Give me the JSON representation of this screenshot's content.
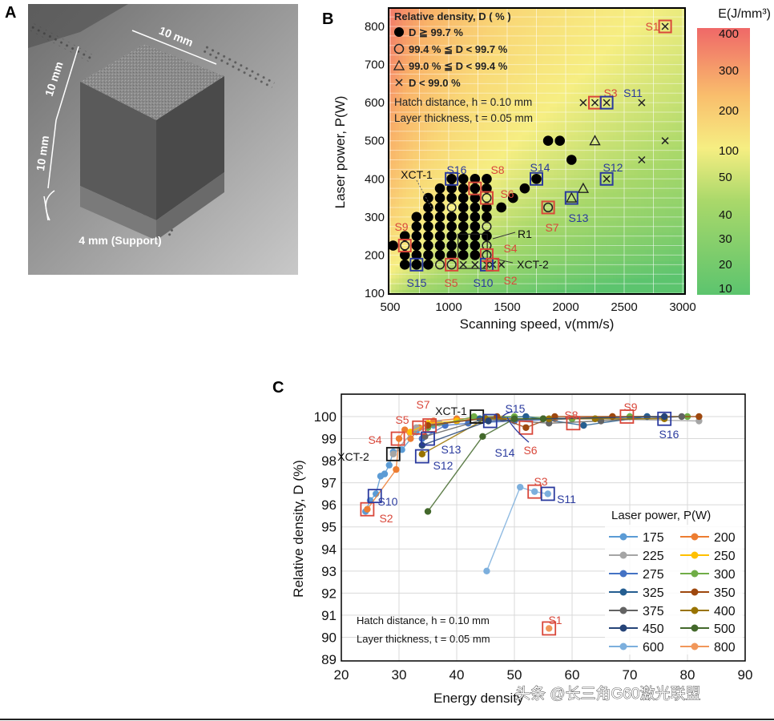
{
  "panels": {
    "a": {
      "letter": "A",
      "labels": {
        "top_width": "10 mm",
        "cube_height": "10 mm",
        "lower_height": "10 mm",
        "support": "4 mm (Support)"
      }
    },
    "b": {
      "letter": "B",
      "legend": {
        "title": "Relative density, D ( % )",
        "items": [
          "D ≧ 99.7 %",
          "99.4 % ≦ D < 99.7 %",
          "99.0 % ≦ D < 99.4 %",
          "D < 99.0 %"
        ],
        "hatch": "Hatch distance, h = 0.10 mm",
        "layer": "Layer thickness, t = 0.05 mm"
      },
      "annotations": [
        "XCT-1",
        "R1",
        "XCT-2"
      ],
      "colorbar": {
        "title": "E(J/mm³)",
        "ticks": [
          "400",
          "300",
          "200",
          "100",
          "50",
          "40",
          "30",
          "20",
          "10"
        ]
      }
    },
    "c": {
      "letter": "C",
      "hatch": "Hatch distance, h = 0.10 mm",
      "layer": "Layer thickness, t = 0.05 mm",
      "legend_title": "Laser power,  P(W)"
    }
  },
  "watermark": "头条 @长三角G60激光联盟",
  "colors": {
    "sample_red": "#d9483b",
    "sample_blue": "#2a3a9e",
    "energy_low": "#5cc46e",
    "energy_mid": "#f6ee82",
    "energy_high": "#ef6868"
  },
  "chart_data": [
    {
      "type": "scatter",
      "panel": "B",
      "xlabel": "Scanning speed,  v(mm/s)",
      "ylabel": "Laser power,  P(W)",
      "xlim": [
        500,
        3000
      ],
      "ylim": [
        100,
        850
      ],
      "xticks": [
        "500",
        "1000",
        "1500",
        "2000",
        "2500",
        "3000"
      ],
      "yticks": [
        "100",
        "200",
        "300",
        "400",
        "500",
        "600",
        "700",
        "800"
      ],
      "background": "energy density E = P/(v·h·t), J/mm³, log color scale 10–400",
      "marker_legend": {
        "filled_circle": "D ≧ 99.7 %",
        "open_circle": "99.4 % ≦ D < 99.7 %",
        "triangle": "99.0 % ≦ D < 99.4 %",
        "cross": "D < 99.0 %"
      },
      "points": [
        [
          525,
          225,
          "filled"
        ],
        [
          625,
          175,
          "filled"
        ],
        [
          625,
          200,
          "filled"
        ],
        [
          625,
          225,
          "open"
        ],
        [
          625,
          250,
          "filled"
        ],
        [
          725,
          175,
          "filled"
        ],
        [
          725,
          200,
          "filled"
        ],
        [
          725,
          225,
          "filled"
        ],
        [
          725,
          250,
          "filled"
        ],
        [
          725,
          275,
          "filled"
        ],
        [
          725,
          300,
          "filled"
        ],
        [
          825,
          175,
          "filled"
        ],
        [
          825,
          200,
          "filled"
        ],
        [
          825,
          225,
          "filled"
        ],
        [
          825,
          250,
          "filled"
        ],
        [
          825,
          275,
          "filled"
        ],
        [
          825,
          300,
          "filled"
        ],
        [
          825,
          325,
          "filled"
        ],
        [
          825,
          350,
          "filled"
        ],
        [
          925,
          175,
          "open"
        ],
        [
          925,
          200,
          "filled"
        ],
        [
          925,
          225,
          "filled"
        ],
        [
          925,
          250,
          "filled"
        ],
        [
          925,
          275,
          "filled"
        ],
        [
          925,
          300,
          "filled"
        ],
        [
          925,
          325,
          "filled"
        ],
        [
          925,
          350,
          "filled"
        ],
        [
          925,
          375,
          "filled"
        ],
        [
          1025,
          175,
          "open"
        ],
        [
          1025,
          200,
          "filled"
        ],
        [
          1025,
          225,
          "filled"
        ],
        [
          1025,
          250,
          "filled"
        ],
        [
          1025,
          275,
          "filled"
        ],
        [
          1025,
          300,
          "filled"
        ],
        [
          1025,
          325,
          "open"
        ],
        [
          1025,
          350,
          "filled"
        ],
        [
          1025,
          375,
          "filled"
        ],
        [
          1025,
          400,
          "filled"
        ],
        [
          1125,
          175,
          "cross"
        ],
        [
          1125,
          200,
          "filled"
        ],
        [
          1125,
          225,
          "filled"
        ],
        [
          1125,
          250,
          "filled"
        ],
        [
          1125,
          275,
          "filled"
        ],
        [
          1125,
          300,
          "filled"
        ],
        [
          1125,
          325,
          "filled"
        ],
        [
          1125,
          350,
          "filled"
        ],
        [
          1125,
          375,
          "filled"
        ],
        [
          1125,
          400,
          "filled"
        ],
        [
          1225,
          175,
          "cross"
        ],
        [
          1225,
          200,
          "filled"
        ],
        [
          1225,
          225,
          "filled"
        ],
        [
          1225,
          250,
          "filled"
        ],
        [
          1225,
          275,
          "filled"
        ],
        [
          1225,
          300,
          "filled"
        ],
        [
          1225,
          325,
          "filled"
        ],
        [
          1225,
          350,
          "filled"
        ],
        [
          1225,
          375,
          "filled"
        ],
        [
          1225,
          400,
          "filled"
        ],
        [
          1325,
          175,
          "cross"
        ],
        [
          1325,
          200,
          "open"
        ],
        [
          1325,
          225,
          "open"
        ],
        [
          1325,
          250,
          "filled"
        ],
        [
          1325,
          275,
          "open"
        ],
        [
          1325,
          300,
          "filled"
        ],
        [
          1325,
          325,
          "filled"
        ],
        [
          1325,
          350,
          "open"
        ],
        [
          1325,
          375,
          "filled"
        ],
        [
          1325,
          400,
          "filled"
        ],
        [
          1375,
          175,
          "cross"
        ],
        [
          1450,
          175,
          "cross"
        ],
        [
          1450,
          325,
          "filled"
        ],
        [
          1550,
          350,
          "filled"
        ],
        [
          1650,
          375,
          "filled"
        ],
        [
          1750,
          400,
          "filled"
        ],
        [
          1850,
          325,
          "open"
        ],
        [
          1850,
          500,
          "filled"
        ],
        [
          1950,
          500,
          "filled"
        ],
        [
          2050,
          450,
          "filled"
        ],
        [
          2050,
          350,
          "triangle"
        ],
        [
          2150,
          375,
          "triangle"
        ],
        [
          2250,
          500,
          "triangle"
        ],
        [
          2150,
          600,
          "cross"
        ],
        [
          2250,
          600,
          "cross"
        ],
        [
          2350,
          600,
          "cross"
        ],
        [
          2650,
          600,
          "cross"
        ],
        [
          2850,
          500,
          "cross"
        ],
        [
          2650,
          450,
          "cross"
        ],
        [
          2350,
          400,
          "cross"
        ],
        [
          2850,
          800,
          "cross"
        ]
      ],
      "samples": [
        {
          "label": "S1",
          "v": 2850,
          "P": 800,
          "color": "red"
        },
        {
          "label": "S3",
          "v": 2250,
          "P": 600,
          "color": "red"
        },
        {
          "label": "S11",
          "v": 2350,
          "P": 600,
          "color": "blue"
        },
        {
          "label": "S12",
          "v": 2350,
          "P": 400,
          "color": "blue"
        },
        {
          "label": "S14",
          "v": 1750,
          "P": 400,
          "color": "blue"
        },
        {
          "label": "S13",
          "v": 2050,
          "P": 350,
          "color": "blue"
        },
        {
          "label": "S7",
          "v": 1850,
          "P": 325,
          "color": "red"
        },
        {
          "label": "S16",
          "v": 1025,
          "P": 400,
          "color": "blue"
        },
        {
          "label": "S8",
          "v": 1225,
          "P": 375,
          "color": "red"
        },
        {
          "label": "S6",
          "v": 1325,
          "P": 350,
          "color": "red"
        },
        {
          "label": "S9",
          "v": 625,
          "P": 225,
          "color": "red"
        },
        {
          "label": "S4",
          "v": 1325,
          "P": 200,
          "color": "red"
        },
        {
          "label": "S15",
          "v": 725,
          "P": 175,
          "color": "blue"
        },
        {
          "label": "S5",
          "v": 1025,
          "P": 175,
          "color": "red"
        },
        {
          "label": "S10",
          "v": 1325,
          "P": 175,
          "color": "blue"
        },
        {
          "label": "S2",
          "v": 1375,
          "P": 175,
          "color": "red"
        }
      ]
    },
    {
      "type": "line",
      "panel": "C",
      "xlabel": "Energy density",
      "ylabel": "Relative density,  D (%)",
      "xlim": [
        20,
        90
      ],
      "ylim": [
        89,
        101
      ],
      "xticks": [
        "20",
        "30",
        "40",
        "50",
        "60",
        "70",
        "80",
        "90"
      ],
      "yticks": [
        "89",
        "90",
        "91",
        "92",
        "93",
        "94",
        "95",
        "96",
        "97",
        "98",
        "99",
        "100"
      ],
      "grid": true,
      "legend_position": "bottom-right",
      "series": [
        {
          "name": "175",
          "color": "#5b9bd5",
          "points": [
            [
              24.2,
              95.7
            ],
            [
              25,
              96.2
            ],
            [
              26,
              96.5
            ],
            [
              26.8,
              97.3
            ],
            [
              27.5,
              97.4
            ],
            [
              28.3,
              97.8
            ],
            [
              29,
              98.4
            ],
            [
              30.5,
              98.5
            ],
            [
              33,
              99.3
            ],
            [
              36,
              99.6
            ],
            [
              40,
              99.8
            ],
            [
              44,
              99.9
            ],
            [
              50,
              99.9
            ]
          ]
        },
        {
          "name": "200",
          "color": "#ed7d31",
          "points": [
            [
              24.5,
              95.8
            ],
            [
              29.5,
              97.6
            ],
            [
              30,
              99.0
            ],
            [
              31,
              99.4
            ],
            [
              32,
              99.0
            ],
            [
              33.5,
              99.5
            ],
            [
              36,
              99.8
            ],
            [
              40,
              99.9
            ],
            [
              48,
              99.9
            ],
            [
              57,
              99.9
            ],
            [
              67,
              100.0
            ]
          ]
        },
        {
          "name": "225",
          "color": "#a5a5a5",
          "points": [
            [
              29,
              98.3
            ],
            [
              33,
              99.5
            ],
            [
              37,
              99.7
            ],
            [
              45,
              99.9
            ],
            [
              55,
              99.9
            ],
            [
              64,
              99.9
            ],
            [
              82,
              99.8
            ]
          ]
        },
        {
          "name": "250",
          "color": "#ffc000",
          "points": [
            [
              32,
              99.3
            ],
            [
              35,
              99.7
            ],
            [
              40,
              99.8
            ],
            [
              45,
              99.9
            ],
            [
              55,
              99.9
            ],
            [
              60,
              99.9
            ]
          ]
        },
        {
          "name": "275",
          "color": "#4472c4",
          "points": [
            [
              34,
              99.0
            ],
            [
              38,
              99.6
            ],
            [
              42,
              99.7
            ],
            [
              50,
              99.8
            ],
            [
              60,
              99.9
            ],
            [
              73,
              100.0
            ]
          ]
        },
        {
          "name": "300",
          "color": "#70ad47",
          "points": [
            [
              35,
              99.5
            ],
            [
              43,
              100.0
            ],
            [
              50,
              100.0
            ],
            [
              60,
              99.9
            ],
            [
              70,
              100.0
            ],
            [
              80,
              100.0
            ]
          ]
        },
        {
          "name": "325",
          "color": "#255e91",
          "points": [
            [
              35,
              99.6
            ],
            [
              44,
              99.9
            ],
            [
              52,
              100.0
            ],
            [
              62,
              99.6
            ],
            [
              73,
              100.0
            ]
          ]
        },
        {
          "name": "350",
          "color": "#9e480e",
          "points": [
            [
              35,
              99.6
            ],
            [
              47,
              100.0
            ],
            [
              52,
              99.5
            ],
            [
              57,
              100.0
            ],
            [
              67,
              100.0
            ],
            [
              82,
              100.0
            ]
          ]
        },
        {
          "name": "375",
          "color": "#636363",
          "points": [
            [
              34.5,
              99.1
            ],
            [
              45,
              99.9
            ],
            [
              56,
              99.7
            ],
            [
              65,
              99.8
            ],
            [
              79,
              100.0
            ]
          ]
        },
        {
          "name": "400",
          "color": "#997300",
          "points": [
            [
              34,
              98.3
            ],
            [
              45,
              99.9
            ],
            [
              56,
              99.9
            ],
            [
              64,
              99.9
            ],
            [
              76,
              99.9
            ]
          ]
        },
        {
          "name": "450",
          "color": "#264478",
          "points": [
            [
              34,
              98.7
            ],
            [
              45.5,
              99.8
            ],
            [
              55,
              99.9
            ],
            [
              76,
              100.0
            ]
          ]
        },
        {
          "name": "500",
          "color": "#43682b",
          "points": [
            [
              35,
              95.7
            ],
            [
              44.5,
              99.1
            ],
            [
              50,
              99.9
            ],
            [
              55,
              99.9
            ]
          ]
        },
        {
          "name": "600",
          "color": "#7cafdd",
          "points": [
            [
              45.2,
              93.0
            ],
            [
              51,
              96.8
            ],
            [
              53.5,
              96.6
            ],
            [
              55.8,
              96.5
            ]
          ]
        },
        {
          "name": "800",
          "color": "#f1975a",
          "points": [
            [
              56,
              90.4
            ]
          ]
        }
      ],
      "samples": [
        {
          "label": "S1",
          "x": 56,
          "y": 90.4,
          "color": "red"
        },
        {
          "label": "S2",
          "x": 24.5,
          "y": 95.8,
          "color": "red"
        },
        {
          "label": "S10",
          "x": 25.8,
          "y": 96.4,
          "color": "blue"
        },
        {
          "label": "S3",
          "x": 53.5,
          "y": 96.6,
          "color": "red"
        },
        {
          "label": "S11",
          "x": 55.8,
          "y": 96.5,
          "color": "blue"
        },
        {
          "label": "XCT-2",
          "x": 29,
          "y": 98.3,
          "color": "black"
        },
        {
          "label": "S4",
          "x": 29.8,
          "y": 99.0,
          "color": "red"
        },
        {
          "label": "S5",
          "x": 33.5,
          "y": 99.5,
          "color": "red"
        },
        {
          "label": "S7",
          "x": 35.3,
          "y": 99.6,
          "color": "red"
        },
        {
          "label": "S12",
          "x": 34,
          "y": 98.2,
          "color": "blue"
        },
        {
          "label": "S13",
          "x": 35,
          "y": 99.0,
          "color": "blue"
        },
        {
          "label": "XCT-1",
          "x": 43.5,
          "y": 100.0,
          "color": "black"
        },
        {
          "label": "S15",
          "x": 45.8,
          "y": 99.8,
          "color": "blue"
        },
        {
          "label": "S14",
          "x": 45.8,
          "y": 99.8,
          "color": "blue"
        },
        {
          "label": "S6",
          "x": 52,
          "y": 99.5,
          "color": "red"
        },
        {
          "label": "S8",
          "x": 60.2,
          "y": 99.7,
          "color": "red"
        },
        {
          "label": "S9",
          "x": 69.5,
          "y": 100.0,
          "color": "red"
        },
        {
          "label": "S16",
          "x": 76,
          "y": 99.9,
          "color": "blue"
        }
      ]
    }
  ]
}
